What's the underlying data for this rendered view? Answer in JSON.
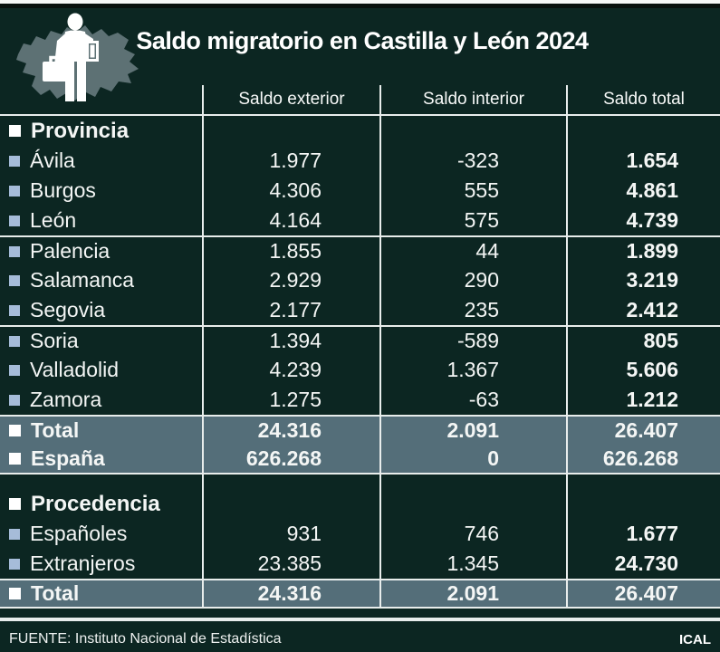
{
  "title": "Saldo migratorio en Castilla y León 2024",
  "columns": [
    "Saldo exterior",
    "Saldo interior",
    "Saldo total"
  ],
  "table": {
    "rows": [
      {
        "kind": "section",
        "label": "Provincia",
        "values": [
          "",
          "",
          ""
        ]
      },
      {
        "kind": "data",
        "label": "Ávila",
        "values": [
          "1.977",
          "-323",
          "1.654"
        ]
      },
      {
        "kind": "data",
        "label": "Burgos",
        "values": [
          "4.306",
          "555",
          "4.861"
        ]
      },
      {
        "kind": "data",
        "label": "León",
        "values": [
          "4.164",
          "575",
          "4.739"
        ]
      },
      {
        "kind": "data",
        "label": "Palencia",
        "values": [
          "1.855",
          "44",
          "1.899"
        ],
        "top": true
      },
      {
        "kind": "data",
        "label": "Salamanca",
        "values": [
          "2.929",
          "290",
          "3.219"
        ]
      },
      {
        "kind": "data",
        "label": "Segovia",
        "values": [
          "2.177",
          "235",
          "2.412"
        ]
      },
      {
        "kind": "data",
        "label": "Soria",
        "values": [
          "1.394",
          "-589",
          "805"
        ],
        "top": true
      },
      {
        "kind": "data",
        "label": "Valladolid",
        "values": [
          "4.239",
          "1.367",
          "5.606"
        ]
      },
      {
        "kind": "data",
        "label": "Zamora",
        "values": [
          "1.275",
          "-63",
          "1.212"
        ]
      },
      {
        "kind": "total",
        "label": "Total",
        "values": [
          "24.316",
          "2.091",
          "26.407"
        ],
        "top": true
      },
      {
        "kind": "total",
        "label": "España",
        "values": [
          "626.268",
          "0",
          "626.268"
        ],
        "bottom": true
      },
      {
        "kind": "spacer"
      },
      {
        "kind": "section",
        "label": "Procedencia",
        "values": [
          "",
          "",
          ""
        ]
      },
      {
        "kind": "data",
        "label": "Españoles",
        "values": [
          "931",
          "746",
          "1.677"
        ]
      },
      {
        "kind": "data",
        "label": "Extranjeros",
        "values": [
          "23.385",
          "1.345",
          "24.730"
        ]
      },
      {
        "kind": "total",
        "label": "Total",
        "values": [
          "24.316",
          "2.091",
          "26.407"
        ],
        "top": true,
        "bottom": true
      }
    ]
  },
  "footer": {
    "source": "FUENTE: Instituto Nacional de Estadística",
    "credit": "ICAL"
  },
  "icon": {
    "name": "castilla-y-leon-map-with-migrant-icon"
  },
  "colors": {
    "background": "#0c2622",
    "line": "#e8edec",
    "highlight_row": "#546e79",
    "bullet_blue": "#a6bcd9",
    "map_grey": "#5d7174",
    "text": "#ffffff"
  },
  "chart_data": {
    "type": "table",
    "title": "Saldo migratorio en Castilla y León 2024",
    "columns": [
      "Saldo exterior",
      "Saldo interior",
      "Saldo total"
    ],
    "sections": [
      {
        "name": "Provincia",
        "rows": [
          [
            "Ávila",
            1977,
            -323,
            1654
          ],
          [
            "Burgos",
            4306,
            555,
            4861
          ],
          [
            "León",
            4164,
            575,
            4739
          ],
          [
            "Palencia",
            1855,
            44,
            1899
          ],
          [
            "Salamanca",
            2929,
            290,
            3219
          ],
          [
            "Segovia",
            2177,
            235,
            2412
          ],
          [
            "Soria",
            1394,
            -589,
            805
          ],
          [
            "Valladolid",
            4239,
            1367,
            5606
          ],
          [
            "Zamora",
            1275,
            -63,
            1212
          ]
        ],
        "total": [
          "Total",
          24316,
          2091,
          26407
        ],
        "reference": [
          "España",
          626268,
          0,
          626268
        ]
      },
      {
        "name": "Procedencia",
        "rows": [
          [
            "Españoles",
            931,
            746,
            1677
          ],
          [
            "Extranjeros",
            23385,
            1345,
            24730
          ]
        ],
        "total": [
          "Total",
          24316,
          2091,
          26407
        ]
      }
    ],
    "source": "FUENTE: Instituto Nacional de Estadística",
    "credit": "ICAL"
  }
}
